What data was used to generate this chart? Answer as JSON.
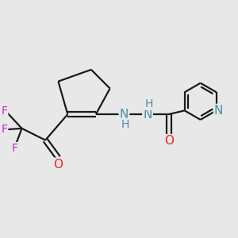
{
  "bg_color": "#e8e8e8",
  "bond_color": "#1a1a1a",
  "bond_width": 1.6,
  "atom_colors": {
    "N": "#4a8fa8",
    "O": "#e8271e",
    "F": "#cc22cc",
    "H": "#4a8fa8"
  },
  "font_size": 10,
  "fig_size": [
    3.0,
    3.0
  ],
  "dpi": 100,
  "xlim": [
    0,
    10
  ],
  "ylim": [
    0,
    10
  ]
}
